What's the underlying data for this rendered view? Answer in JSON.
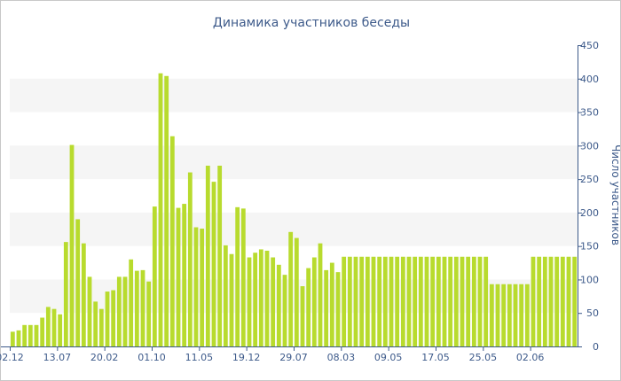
{
  "chart_data": {
    "type": "bar",
    "title": "Динамика участников беседы",
    "xlabel": "",
    "ylabel": "Число участников",
    "ylim": [
      0,
      450
    ],
    "y_ticks": [
      "0",
      "50",
      "100",
      "150",
      "200",
      "250",
      "300",
      "350",
      "400",
      "450"
    ],
    "x_tick_labels": [
      "02.12",
      "13.07",
      "20.02",
      "01.10",
      "11.05",
      "19.12",
      "29.07",
      "08.03",
      "09.05",
      "17.05",
      "25.05",
      "02.06"
    ],
    "x_tick_positions": [
      0,
      8,
      16,
      24,
      32,
      40,
      48,
      56,
      64,
      72,
      80,
      88
    ],
    "grid": true,
    "grid_band_color": "#f5f5f5",
    "bar_color": "#b8db2e",
    "values": [
      22,
      24,
      32,
      32,
      32,
      43,
      59,
      56,
      48,
      156,
      301,
      190,
      154,
      104,
      67,
      56,
      82,
      84,
      104,
      104,
      130,
      113,
      114,
      97,
      209,
      408,
      404,
      314,
      207,
      213,
      260,
      178,
      176,
      270,
      246,
      270,
      151,
      138,
      208,
      206,
      133,
      140,
      145,
      143,
      133,
      122,
      107,
      171,
      162,
      90,
      117,
      133,
      154,
      114,
      125,
      111,
      134,
      134,
      134,
      134,
      134,
      134,
      134,
      134,
      134,
      134,
      134,
      134,
      134,
      134,
      134,
      134,
      134,
      134,
      134,
      134,
      134,
      134,
      134,
      134,
      134,
      93,
      93,
      93,
      93,
      93,
      93,
      93,
      134,
      134,
      134,
      134,
      134,
      134,
      134,
      134
    ]
  }
}
